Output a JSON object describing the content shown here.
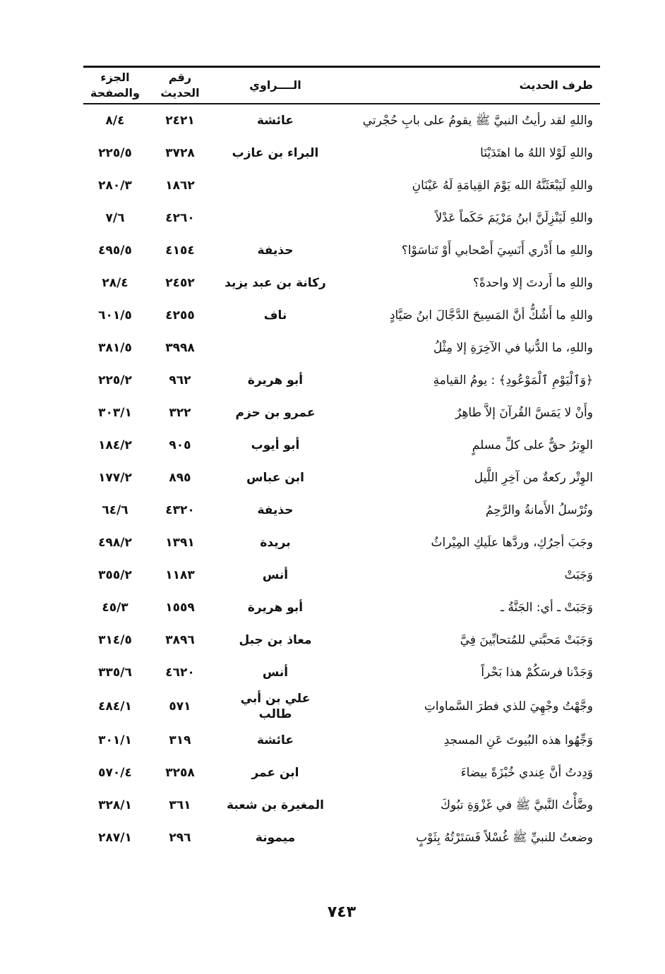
{
  "header": {
    "text": "طرف الحديث",
    "narrator": "الــــراوي",
    "number": "رقم الحديث",
    "page": "الجزء والصفحة"
  },
  "rows": [
    {
      "text": "واللهِ لقد رأيتُ النبيَّ ﷺ يقومُ على بابِ حُجْرتي",
      "narrator": "عائشة",
      "number": "٢٤٢١",
      "page": "٨/٤"
    },
    {
      "text": "واللهِ لَوْلا اللهُ ما اهتَدَيْنَا",
      "narrator": "البراء بن عازب",
      "number": "٣٧٢٨",
      "page": "٢٢٥/٥"
    },
    {
      "text": "واللهِ لَيَبْعَثَنَّهُ الله يَوْمَ القِيامَةِ لَهُ عَيْنَانِ",
      "narrator": "",
      "number": "١٨٦٢",
      "page": "٢٨٠/٣"
    },
    {
      "text": "واللهِ لَيَنْزِلَنَّ ابنُ مَرْيَمَ حَكَماً عَدْلاً",
      "narrator": "",
      "number": "٤٢٦٠",
      "page": "٧/٦"
    },
    {
      "text": "واللهِ ما أَدْري أَنَسِيَ أَصْحابي أَوْ تَناسَوْا؟",
      "narrator": "حذيفة",
      "number": "٤١٥٤",
      "page": "٤٩٥/٥"
    },
    {
      "text": "واللهِ ما أَردتَ إلا واحدةً؟",
      "narrator": "ركانة بن عبد يزيد",
      "number": "٢٤٥٢",
      "page": "٢٨/٤"
    },
    {
      "text": "واللهِ ما أَشُكُّ أنَّ المَسِيحَ الدَّجَّالَ ابنُ صَيَّادٍ",
      "narrator": "ناف",
      "number": "٤٢٥٥",
      "page": "٦٠١/٥"
    },
    {
      "text": "واللهِ، ما الدُّنيا في الآخِرَةِ إلا مِثْلُ",
      "narrator": "",
      "number": "٣٩٩٨",
      "page": "٣٨١/٥"
    },
    {
      "text": "﴿وَٱلْيَوْمِ ٱلْمَوْعُودِ﴾ : يومُ القيامةِ",
      "narrator": "أبو هريرة",
      "number": "٩٦٢",
      "page": "٢٢٥/٢"
    },
    {
      "text": "وأَنْ لا يَمَسَّ القُرآنَ إلاَّ طاهِرٌ",
      "narrator": "عمرو بن حزم",
      "number": "٣٢٢",
      "page": "٣٠٣/١"
    },
    {
      "text": "الوِترُ حقٌّ على كلِّ مسلمٍ",
      "narrator": "أبو أيوب",
      "number": "٩٠٥",
      "page": "١٨٤/٢"
    },
    {
      "text": "الوِتْر ركعةٌ من آخِرِ اللَّيل",
      "narrator": "ابن عباس",
      "number": "٨٩٥",
      "page": "١٧٧/٢"
    },
    {
      "text": "وتُرْسلُ الأَمانةُ والرَّحِمُ",
      "narrator": "حذيفة",
      "number": "٤٣٢٠",
      "page": "٦٤/٦"
    },
    {
      "text": "وجَبَ أجرُكِ، وردَّها علَيكِ المِيْراثُ",
      "narrator": "بريدة",
      "number": "١٣٩١",
      "page": "٤٩٨/٢"
    },
    {
      "text": "وَجَبَتْ",
      "narrator": "أنس",
      "number": "١١٨٣",
      "page": "٣٥٥/٢"
    },
    {
      "text": "وَجَبَتْ ـ أي: الجَنَّةُ ـ",
      "narrator": "أبو هريرة",
      "number": "١٥٥٩",
      "page": "٤٥/٣"
    },
    {
      "text": "وَجَبَتْ مَحبَّتي للمُتحابِّينَ فِيَّ",
      "narrator": "معاذ بن جبل",
      "number": "٣٨٩٦",
      "page": "٣١٤/٥"
    },
    {
      "text": "وَجَدْنا فرسَكُمْ هذا بَحْراً",
      "narrator": "أنس",
      "number": "٤٦٢٠",
      "page": "٣٣٥/٦"
    },
    {
      "text": "وجَّهْتُ وجْهِيَ للذي فطرَ السَّماواتِ",
      "narrator": "علي بن أبي طالب",
      "number": "٥٧١",
      "page": "٤٨٤/١"
    },
    {
      "text": "وَجِّهُوا هذه البُيوتَ عَنِ المسجدِ",
      "narrator": "عائشة",
      "number": "٣١٩",
      "page": "٣٠١/١"
    },
    {
      "text": "وَدِدتُ أنَّ عِندي خُبْزَةً بيضاءَ",
      "narrator": "ابن عمر",
      "number": "٣٢٥٨",
      "page": "٥٧٠/٤"
    },
    {
      "text": "وضَّأْتُ النَّبيَّ ﷺ في غَزْوَةِ تبُوكَ",
      "narrator": "المغيرة بن شعبة",
      "number": "٣٦١",
      "page": "٣٢٨/١"
    },
    {
      "text": "وضعتُ للنبيِّ ﷺ غُسْلاً فَسَتَرْتُهُ بِثَوْبٍ",
      "narrator": "ميمونة",
      "number": "٢٩٦",
      "page": "٢٨٧/١"
    }
  ],
  "page_number": "٧٤٣"
}
